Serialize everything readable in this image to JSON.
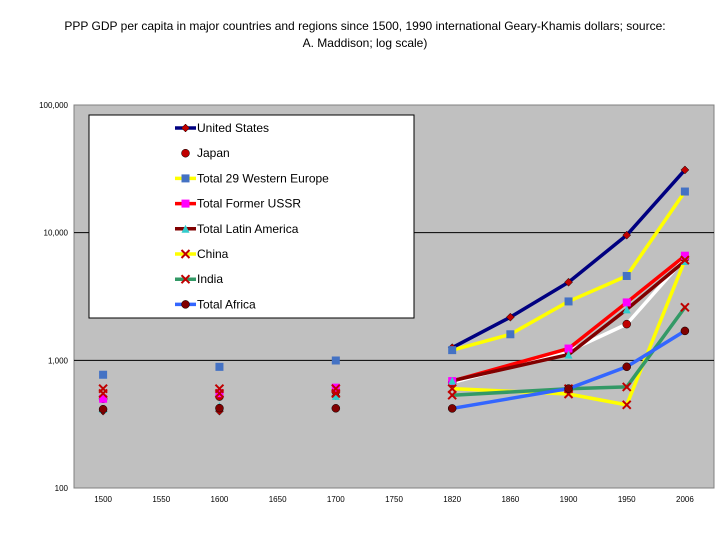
{
  "chart_data": {
    "type": "line",
    "title": "PPP GDP per capita in major countries and regions since 1500, 1990 international Geary-Khamis dollars; source: A. Maddison; log scale)",
    "yscale": "log",
    "ylim": [
      100,
      100000
    ],
    "y_ticks": [
      "100",
      "1,000",
      "10,000",
      "100,000"
    ],
    "categories": [
      "1500",
      "1550",
      "1600",
      "1650",
      "1700",
      "1750",
      "1820",
      "1860",
      "1900",
      "1950",
      "2006"
    ],
    "legend_position": "top-left inside plot",
    "series": [
      {
        "name": "United States",
        "color": "#000080",
        "marker": "diamond",
        "marker_color": "#c00000",
        "values": [
          400,
          null,
          400,
          null,
          527,
          null,
          1257,
          2178,
          4091,
          9561,
          31000
        ]
      },
      {
        "name": "Japan",
        "color": "#ffffff",
        "marker": "circle",
        "marker_color": "#c00000",
        "values": [
          500,
          null,
          520,
          null,
          570,
          null,
          669,
          null,
          1180,
          1921,
          6300
        ]
      },
      {
        "name": "Total 29 Western Europe",
        "color": "#ffff00",
        "marker": "square",
        "marker_color": "#4472c4",
        "values": [
          771,
          null,
          889,
          null,
          997,
          null,
          1202,
          1600,
          2893,
          4579,
          21000
        ]
      },
      {
        "name": "Total Former USSR",
        "color": "#ff0000",
        "marker": "square",
        "marker_color": "#ff00ff",
        "values": [
          500,
          null,
          553,
          null,
          611,
          null,
          688,
          null,
          1237,
          2841,
          6600
        ]
      },
      {
        "name": "Total Latin America",
        "color": "#800000",
        "marker": "triangle",
        "marker_color": "#33cccc",
        "values": [
          416,
          null,
          438,
          null,
          527,
          null,
          692,
          null,
          1109,
          2506,
          6000
        ]
      },
      {
        "name": "China",
        "color": "#ffff00",
        "marker": "x",
        "marker_color": "#c00000",
        "values": [
          600,
          null,
          600,
          null,
          600,
          null,
          600,
          null,
          545,
          448,
          6100
        ]
      },
      {
        "name": "India",
        "color": "#339966",
        "marker": "x",
        "marker_color": "#c00000",
        "values": [
          550,
          null,
          550,
          null,
          550,
          null,
          533,
          null,
          599,
          619,
          2600
        ]
      },
      {
        "name": "Total Africa",
        "color": "#3366ff",
        "marker": "circle",
        "marker_color": "#800000",
        "values": [
          414,
          null,
          422,
          null,
          421,
          null,
          420,
          null,
          601,
          890,
          1700
        ]
      }
    ]
  }
}
